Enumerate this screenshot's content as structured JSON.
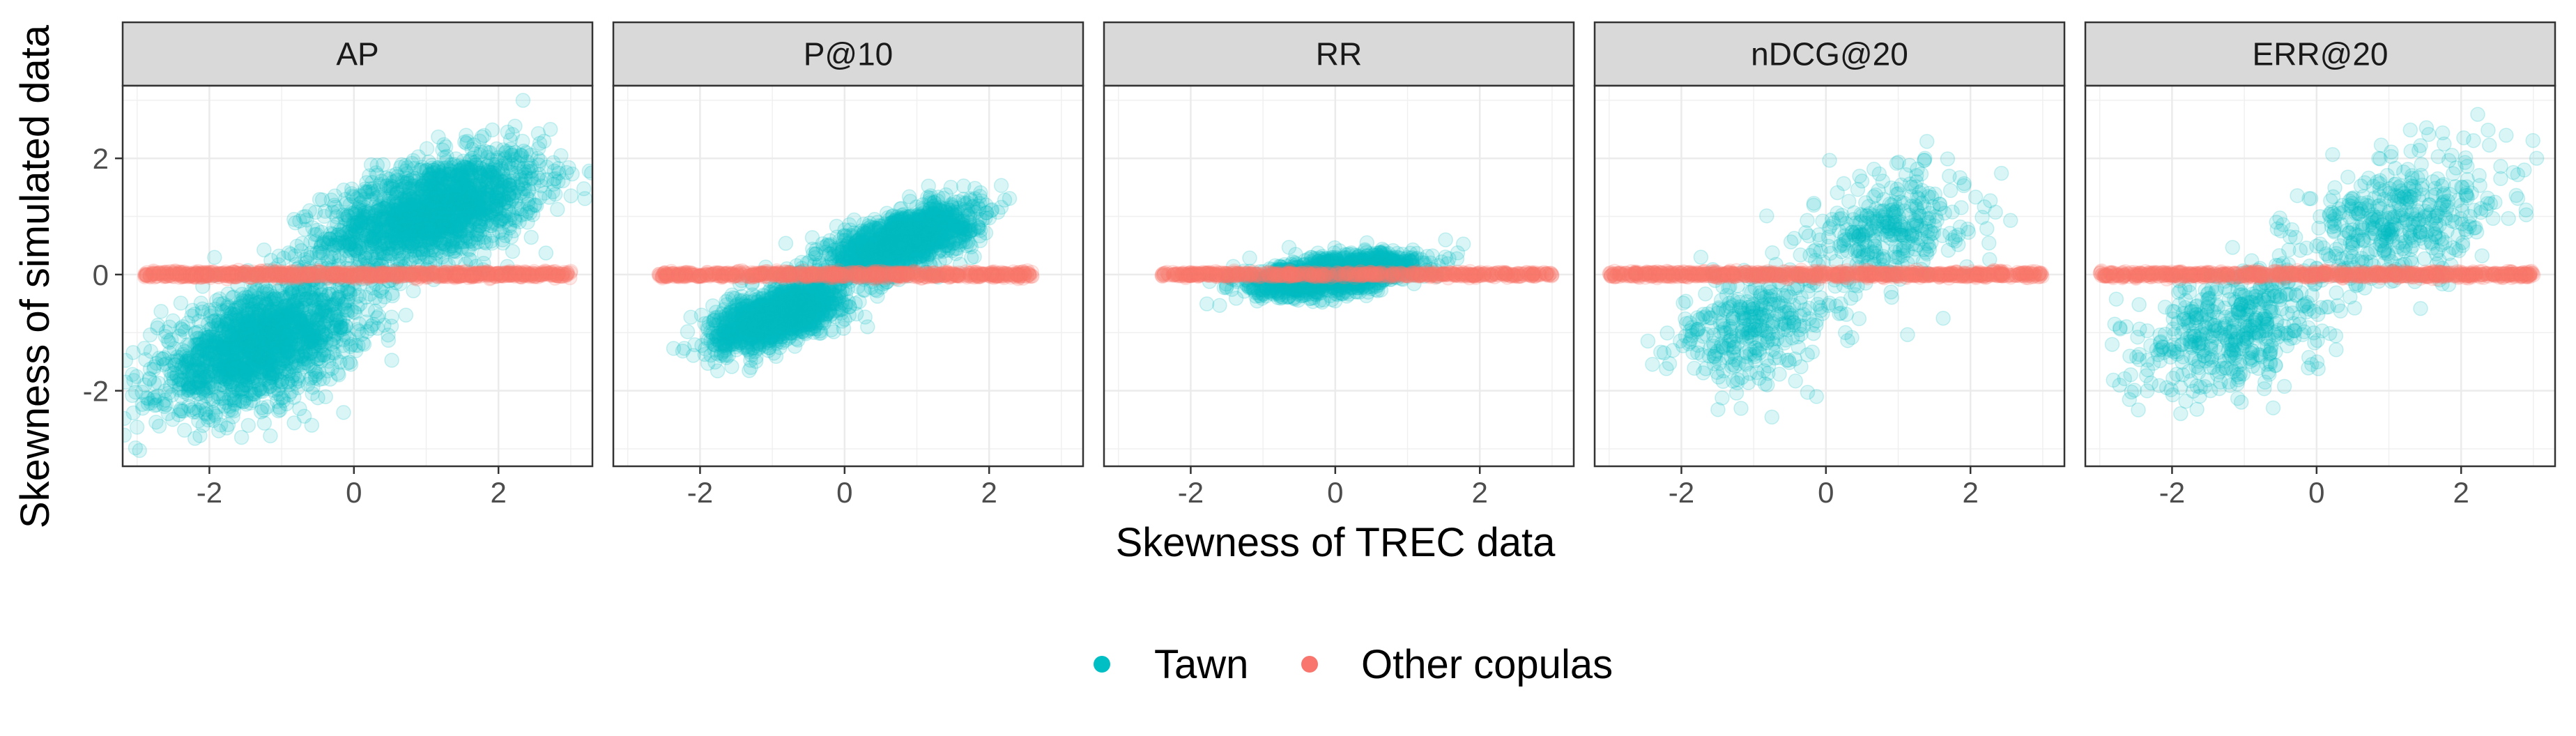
{
  "chart_data": {
    "type": "scatter",
    "facets": [
      "AP",
      "P@10",
      "RR",
      "nDCG@20",
      "ERR@20"
    ],
    "xlabel": "Skewness of TREC data",
    "ylabel": "Skewness of simulated data",
    "xlim": [
      -3.2,
      3.3
    ],
    "ylim": [
      -3.3,
      3.25
    ],
    "xticks": [
      -2,
      0,
      2
    ],
    "yticks": [
      -2,
      0,
      2
    ],
    "grid": true,
    "legend_position": "bottom",
    "series": [
      {
        "name": "Tawn",
        "color": "#00BFC4",
        "alpha": 0.15,
        "clusters": {
          "AP": [
            {
              "cx": 1.1,
              "cy": 1.1,
              "sx": 0.75,
              "sy": 0.5,
              "rho": 0.5,
              "n": 1800
            },
            {
              "cx": -1.3,
              "cy": -1.2,
              "sx": 0.7,
              "sy": 0.55,
              "rho": 0.5,
              "n": 1800
            }
          ],
          "P@10": [
            {
              "cx": 0.8,
              "cy": 0.6,
              "sx": 0.5,
              "sy": 0.3,
              "rho": 0.6,
              "n": 1400
            },
            {
              "cx": -0.9,
              "cy": -0.7,
              "sx": 0.45,
              "sy": 0.3,
              "rho": 0.6,
              "n": 1400
            }
          ],
          "RR": [
            {
              "cx": 0.0,
              "cy": 0.0,
              "sx": 0.55,
              "sy": 0.17,
              "rho": 0.5,
              "n": 1600
            }
          ],
          "nDCG@20": [
            {
              "cx": 0.9,
              "cy": 0.8,
              "sx": 0.55,
              "sy": 0.5,
              "rho": 0.3,
              "n": 350
            },
            {
              "cx": -1.0,
              "cy": -0.9,
              "sx": 0.55,
              "sy": 0.5,
              "rho": 0.3,
              "n": 350
            }
          ],
          "ERR@20": [
            {
              "cx": 1.1,
              "cy": 0.9,
              "sx": 0.7,
              "sy": 0.6,
              "rho": 0.4,
              "n": 450
            },
            {
              "cx": -1.1,
              "cy": -0.9,
              "sx": 0.65,
              "sy": 0.55,
              "rho": 0.4,
              "n": 500
            }
          ]
        }
      },
      {
        "name": "Other copulas",
        "color": "#F8766D",
        "alpha": 0.15,
        "clusters": {
          "AP": [
            {
              "xmin": -2.9,
              "xmax": 3.0,
              "sy": 0.025,
              "n": 900
            }
          ],
          "P@10": [
            {
              "xmin": -2.6,
              "xmax": 2.6,
              "sy": 0.025,
              "n": 700
            }
          ],
          "RR": [
            {
              "xmin": -2.4,
              "xmax": 3.0,
              "sy": 0.02,
              "n": 600
            }
          ],
          "nDCG@20": [
            {
              "xmin": -3.0,
              "xmax": 3.0,
              "sy": 0.025,
              "n": 800
            }
          ],
          "ERR@20": [
            {
              "xmin": -3.0,
              "xmax": 3.0,
              "sy": 0.025,
              "n": 800
            }
          ]
        }
      }
    ]
  }
}
